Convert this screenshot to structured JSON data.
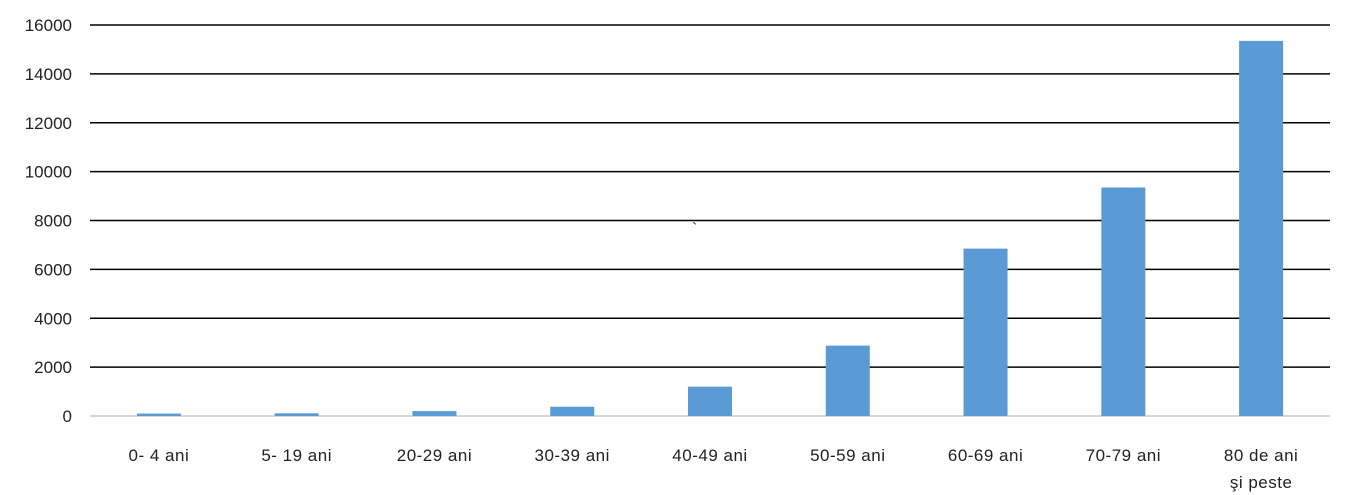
{
  "chart_data": {
    "type": "bar",
    "categories": [
      [
        "0- 4 ani"
      ],
      [
        "5- 19 ani"
      ],
      [
        "20-29 ani"
      ],
      [
        "30-39 ani"
      ],
      [
        "40-49 ani"
      ],
      [
        "50-59 ani"
      ],
      [
        "60-69 ani"
      ],
      [
        "70-79 ani"
      ],
      [
        "80 de ani",
        "şi peste"
      ]
    ],
    "values": [
      100,
      110,
      200,
      380,
      1200,
      2880,
      6850,
      9350,
      15350
    ],
    "ylim": [
      0,
      16000
    ],
    "yticks": [
      0,
      2000,
      4000,
      6000,
      8000,
      10000,
      12000,
      14000,
      16000
    ],
    "grid": true,
    "legend": "none",
    "bar_color": "#5b9bd5",
    "annotations": [
      "`"
    ]
  }
}
